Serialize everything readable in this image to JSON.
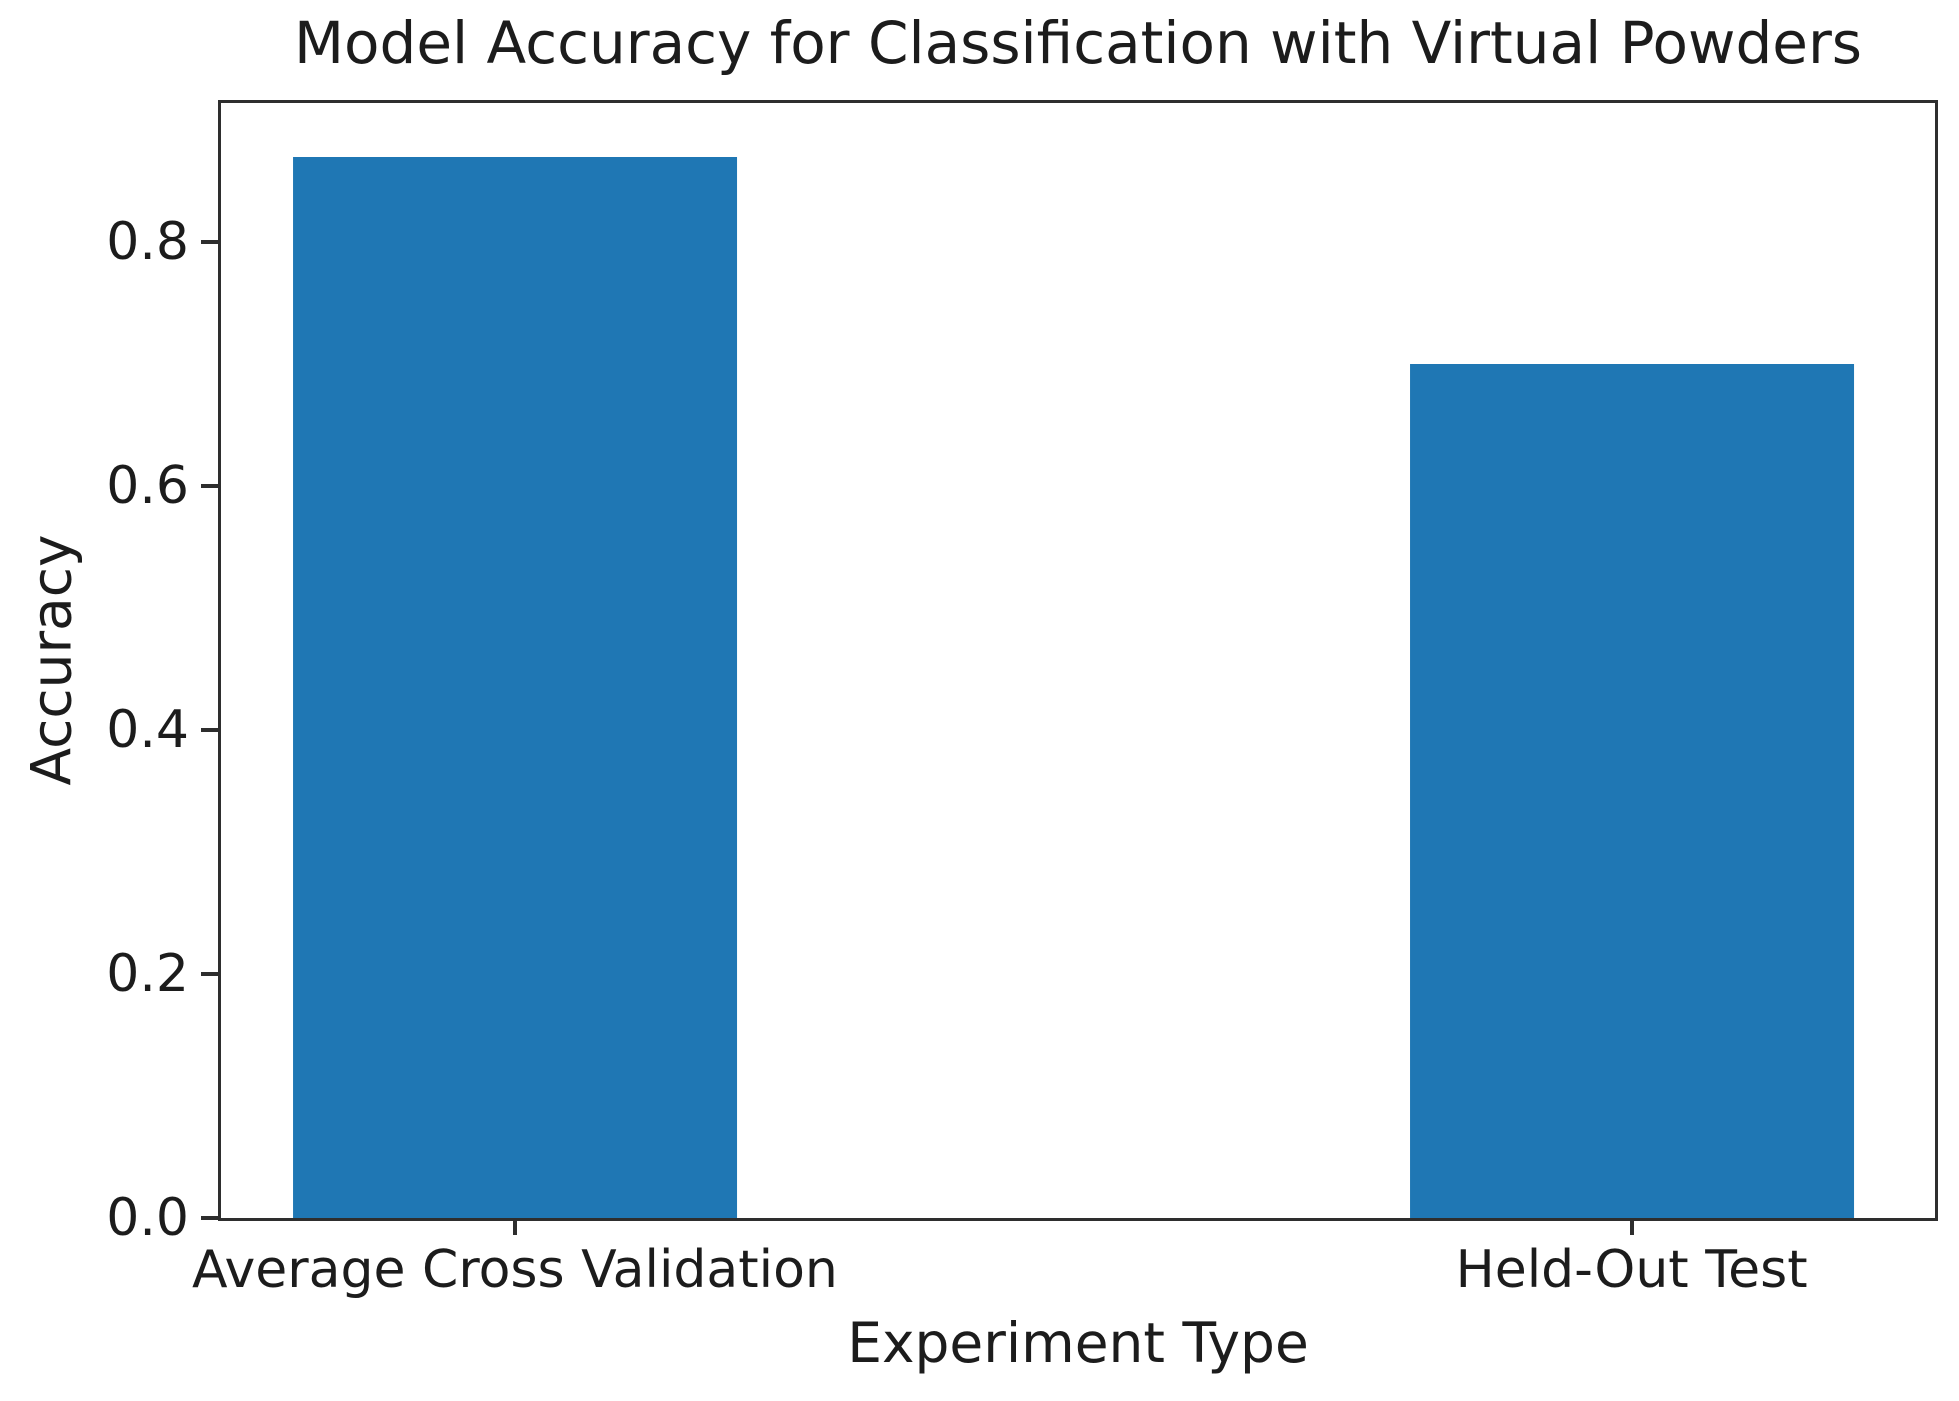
{
  "chart_data": {
    "type": "bar",
    "title": "Model Accuracy for Classification with Virtual Powders",
    "xlabel": "Experiment Type",
    "ylabel": "Accuracy",
    "categories": [
      "Average Cross Validation",
      "Held-Out Test"
    ],
    "values": [
      0.87,
      0.7
    ],
    "ytick_labels": [
      "0.0",
      "0.2",
      "0.4",
      "0.6",
      "0.8"
    ],
    "ytick_values": [
      0.0,
      0.2,
      0.4,
      0.6,
      0.8
    ],
    "ylim": [
      0,
      0.914
    ],
    "grid": false,
    "legend": false,
    "bar_color": "#1f77b4",
    "axis_color": "#2e2e2e",
    "text_color": "#1c1c1c"
  }
}
